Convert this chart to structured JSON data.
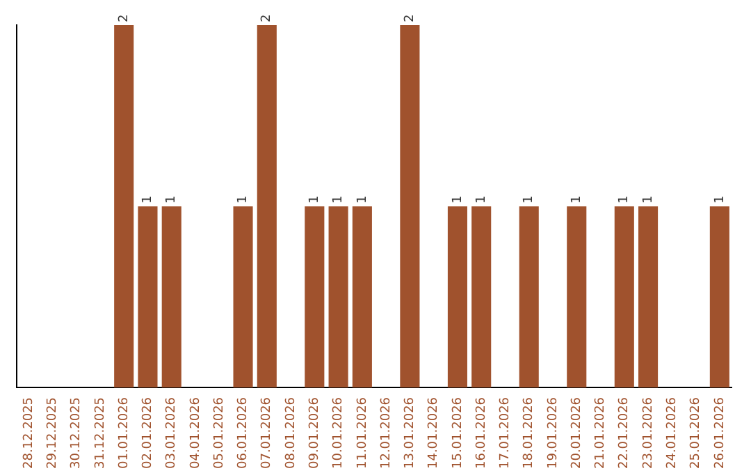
{
  "chart_data": {
    "type": "bar",
    "categories": [
      "28.12.2025",
      "29.12.2025",
      "30.12.2025",
      "31.12.2025",
      "01.01.2026",
      "02.01.2026",
      "03.01.2026",
      "04.01.2026",
      "05.01.2026",
      "06.01.2026",
      "07.01.2026",
      "08.01.2026",
      "09.01.2026",
      "10.01.2026",
      "11.01.2026",
      "12.01.2026",
      "13.01.2026",
      "14.01.2026",
      "15.01.2026",
      "16.01.2026",
      "17.01.2026",
      "18.01.2026",
      "19.01.2026",
      "20.01.2026",
      "21.01.2026",
      "22.01.2026",
      "23.01.2026",
      "24.01.2026",
      "25.01.2026",
      "26.01.2026"
    ],
    "values": [
      0,
      0,
      0,
      0,
      2,
      1,
      1,
      0,
      0,
      1,
      2,
      0,
      1,
      1,
      1,
      0,
      2,
      0,
      1,
      1,
      0,
      1,
      0,
      1,
      0,
      1,
      1,
      0,
      0,
      1
    ],
    "value_labels": [
      null,
      null,
      null,
      null,
      "2",
      "1",
      "1",
      null,
      null,
      "1",
      "2",
      null,
      "1",
      "1",
      "1",
      null,
      "2",
      null,
      "1",
      "1",
      null,
      "1",
      null,
      "1",
      null,
      "1",
      "1",
      null,
      null,
      "1"
    ],
    "color": "#a0522d",
    "ylim": [
      0,
      2
    ]
  }
}
